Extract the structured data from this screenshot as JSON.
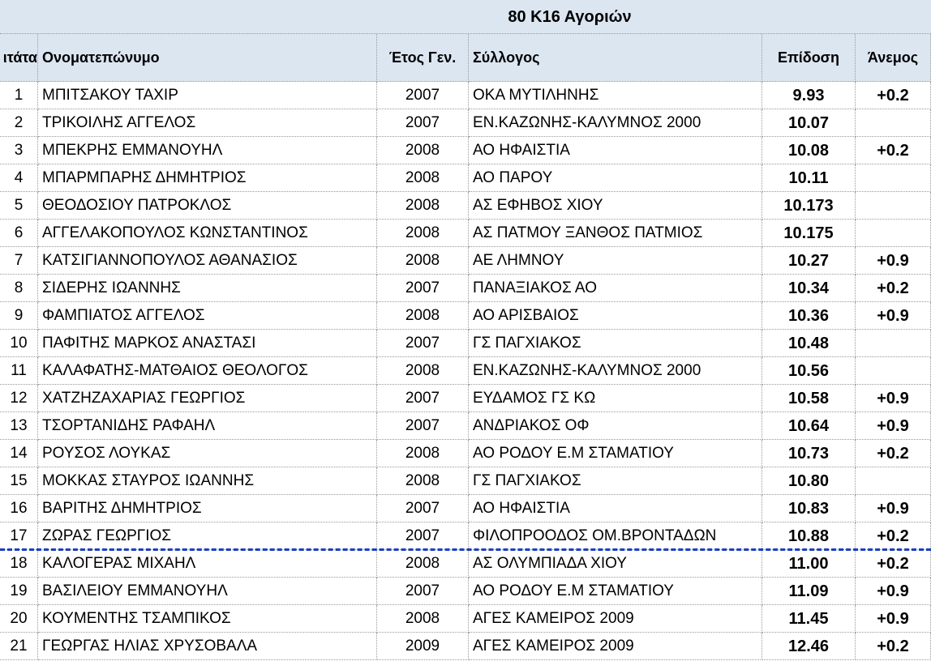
{
  "title": "80 Κ16 Αγοριών",
  "table": {
    "headers": [
      "ιτάτα",
      "Ονοματεπώνυμο",
      "Έτος Γεν.",
      "Σύλλογος",
      "Επίδοση",
      "Άνεμος"
    ],
    "rows": [
      [
        "1",
        "ΜΠΙΤΣΑΚΟΥ ΤΑΧΙΡ",
        "2007",
        "ΟΚΑ ΜΥΤΙΛΗΝΗΣ",
        "9.93",
        "+0.2"
      ],
      [
        "2",
        "ΤΡΙΚΟΙΛΗΣ ΑΓΓΕΛΟΣ",
        "2007",
        "ΕΝ.ΚΑΖΩΝΗΣ-ΚΑΛΥΜΝΟΣ 2000",
        "10.07",
        null
      ],
      [
        "3",
        "ΜΠΕΚΡΗΣ ΕΜΜΑΝΟΥΗΛ",
        "2008",
        "ΑΟ ΗΦΑΙΣΤΙΑ",
        "10.08",
        "+0.2"
      ],
      [
        "4",
        "ΜΠΑΡΜΠΑΡΗΣ ΔΗΜΗΤΡΙΟΣ",
        "2008",
        "ΑΟ ΠΑΡΟΥ",
        "10.11",
        null
      ],
      [
        "5",
        "ΘΕΟΔΟΣΙΟΥ ΠΑΤΡΟΚΛΟΣ",
        "2008",
        "ΑΣ ΕΦΗΒΟΣ ΧΙΟΥ",
        "10.173",
        null
      ],
      [
        "6",
        "ΑΓΓΕΛΑΚΟΠΟΥΛΟΣ ΚΩΝΣΤΑΝΤΙΝΟΣ",
        "2008",
        "ΑΣ ΠΑΤΜΟΥ ΞΑΝΘΟΣ ΠΑΤΜΙΟΣ",
        "10.175",
        null
      ],
      [
        "7",
        "ΚΑΤΣΙΓΙΑΝΝΟΠΟΥΛΟΣ ΑΘΑΝΑΣΙΟΣ",
        "2008",
        "ΑΕ ΛΗΜΝΟΥ",
        "10.27",
        "+0.9"
      ],
      [
        "8",
        "ΣΙΔΕΡΗΣ ΙΩΑΝΝΗΣ",
        "2007",
        "ΠΑΝΑΞΙΑΚΟΣ ΑΟ",
        "10.34",
        "+0.2"
      ],
      [
        "9",
        "ΦΑΜΠΙΑΤΟΣ ΑΓΓΕΛΟΣ",
        "2008",
        "ΑΟ ΑΡΙΣΒΑΙΟΣ",
        "10.36",
        "+0.9"
      ],
      [
        "10",
        "ΠΑΦΙΤΗΣ ΜΑΡΚΟΣ ΑΝΑΣΤΑΣΙ",
        "2007",
        "ΓΣ ΠΑΓΧΙΑΚΟΣ",
        "10.48",
        null
      ],
      [
        "11",
        "ΚΑΛΑΦΑΤΗΣ-ΜΑΤΘΑΙΟΣ ΘΕΟΛΟΓΟΣ",
        "2008",
        "ΕΝ.ΚΑΖΩΝΗΣ-ΚΑΛΥΜΝΟΣ 2000",
        "10.56",
        null
      ],
      [
        "12",
        "ΧΑΤΖΗΖΑΧΑΡΙΑΣ ΓΕΩΡΓΙΟΣ",
        "2007",
        "ΕΥΔΑΜΟΣ ΓΣ ΚΩ",
        "10.58",
        "+0.9"
      ],
      [
        "13",
        "ΤΣΟΡΤΑΝΙΔΗΣ ΡΑΦΑΗΛ",
        "2007",
        "ΑΝΔΡΙΑΚΟΣ ΟΦ",
        "10.64",
        "+0.9"
      ],
      [
        "14",
        "ΡΟΥΣΟΣ ΛΟΥΚΑΣ",
        "2008",
        "ΑΟ ΡΟΔΟΥ Ε.Μ ΣΤΑΜΑΤΙΟΥ",
        "10.73",
        "+0.2"
      ],
      [
        "15",
        "ΜΟΚΚΑΣ ΣΤΑΥΡΟΣ ΙΩΑΝΝΗΣ",
        "2008",
        "ΓΣ ΠΑΓΧΙΑΚΟΣ",
        "10.80",
        null
      ],
      [
        "16",
        "ΒΑΡΙΤΗΣ ΔΗΜΗΤΡΙΟΣ",
        "2007",
        "ΑΟ ΗΦΑΙΣΤΙΑ",
        "10.83",
        "+0.9"
      ],
      [
        "17",
        "ΖΩΡΑΣ ΓΕΩΡΓΙΟΣ",
        "2007",
        "ΦΙΛΟΠΡΟΟΔΟΣ ΟΜ.ΒΡΟΝΤΑΔΩΝ",
        "10.88",
        "+0.2"
      ],
      [
        "18",
        "ΚΑΛΟΓΕΡΑΣ ΜΙΧΑΗΛ",
        "2008",
        "ΑΣ ΟΛΥΜΠΙΑΔΑ ΧΙΟΥ",
        "11.00",
        "+0.2"
      ],
      [
        "19",
        "ΒΑΣΙΛΕΙΟΥ ΕΜΜΑΝΟΥΗΛ",
        "2007",
        "ΑΟ ΡΟΔΟΥ Ε.Μ ΣΤΑΜΑΤΙΟΥ",
        "11.09",
        "+0.9"
      ],
      [
        "20",
        "ΚΟΥΜΕΝΤΗΣ ΤΣΑΜΠΙΚΟΣ",
        "2008",
        "ΑΓΕΣ ΚΑΜΕΙΡΟΣ 2009",
        "11.45",
        "+0.9"
      ],
      [
        "21",
        "ΓΕΩΡΓΑΣ ΗΛΙΑΣ ΧΡΥΣΟΒΑΛΑ",
        "2009",
        "ΑΓΕΣ ΚΑΜΕΙΡΟΣ 2009",
        "12.46",
        "+0.2"
      ]
    ]
  }
}
